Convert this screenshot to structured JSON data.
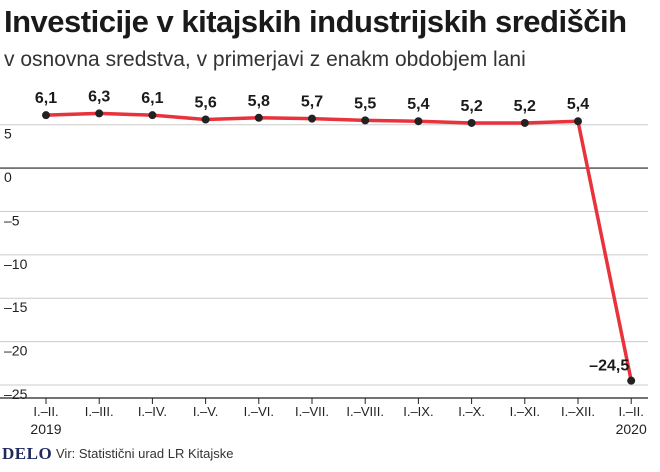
{
  "header": {
    "title": "Investicije v kitajskih industrijskih središčih",
    "subtitle": "v osnovna sredstva, v primerjavi z enakm obdobjem lani"
  },
  "footer": {
    "logo": "DELO",
    "source": "Vir: Statistični urad LR Kitajske"
  },
  "colors": {
    "line": "#e8323c",
    "axis": "#222222",
    "grid": "#cccccc"
  },
  "chart_data": {
    "type": "line",
    "title": "Investicije v kitajskih industrijskih središčih",
    "subtitle": "v osnovna sredstva, v primerjavi z enakm obdobjem lani",
    "categories": [
      "I.–II.",
      "I.–III.",
      "I.–IV.",
      "I.–V.",
      "I.–VI.",
      "I.–VII.",
      "I.–VIII.",
      "I.–IX.",
      "I.–X.",
      "I.–XI.",
      "I.–XII.",
      "I.–II."
    ],
    "year_labels": [
      {
        "index": 0,
        "label": "2019"
      },
      {
        "index": 11,
        "label": "2020"
      }
    ],
    "series": [
      {
        "values": [
          6.1,
          6.3,
          6.1,
          5.6,
          5.8,
          5.7,
          5.5,
          5.4,
          5.2,
          5.2,
          5.4,
          -24.5
        ],
        "data_labels": [
          "6,1",
          "6,3",
          "6,1",
          "5,6",
          "5,8",
          "5,7",
          "5,5",
          "5,4",
          "5,2",
          "5,2",
          "5,4",
          "–24,5"
        ]
      }
    ],
    "yticks": [
      5,
      0,
      -5,
      -10,
      -15,
      -20,
      -25
    ],
    "ytick_labels": [
      "5",
      "0",
      "–5",
      "–10",
      "–15",
      "–20",
      "–25"
    ],
    "ylim": [
      -26.5,
      9
    ],
    "grid": true,
    "legend": "none"
  }
}
